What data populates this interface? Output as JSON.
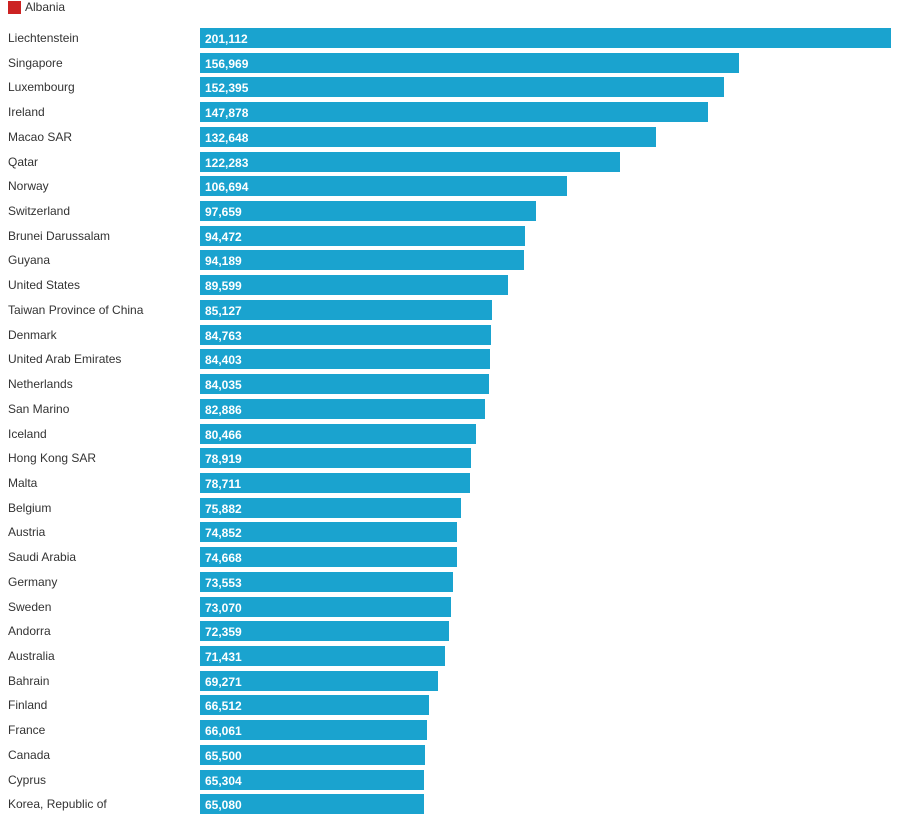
{
  "legend": {
    "label": "Albania",
    "color": "#cc2222"
  },
  "colors": {
    "bar": "#1aa3cf",
    "value_text": "#ffffff",
    "label_text": "#333333"
  },
  "chart_data": {
    "type": "bar",
    "orientation": "horizontal",
    "xlim": [
      0,
      201112
    ],
    "categories": [
      "Liechtenstein",
      "Singapore",
      "Luxembourg",
      "Ireland",
      "Macao SAR",
      "Qatar",
      "Norway",
      "Switzerland",
      "Brunei Darussalam",
      "Guyana",
      "United States",
      "Taiwan Province of China",
      "Denmark",
      "United Arab Emirates",
      "Netherlands",
      "San Marino",
      "Iceland",
      "Hong Kong SAR",
      "Malta",
      "Belgium",
      "Austria",
      "Saudi Arabia",
      "Germany",
      "Sweden",
      "Andorra",
      "Australia",
      "Bahrain",
      "Finland",
      "France",
      "Canada",
      "Cyprus",
      "Korea, Republic of"
    ],
    "values": [
      201112,
      156969,
      152395,
      147878,
      132648,
      122283,
      106694,
      97659,
      94472,
      94189,
      89599,
      85127,
      84763,
      84403,
      84035,
      82886,
      80466,
      78919,
      78711,
      75882,
      74852,
      74668,
      73553,
      73070,
      72359,
      71431,
      69271,
      66512,
      66061,
      65500,
      65304,
      65080
    ],
    "value_labels": [
      "201,112",
      "156,969",
      "152,395",
      "147,878",
      "132,648",
      "122,283",
      "106,694",
      "97,659",
      "94,472",
      "94,189",
      "89,599",
      "85,127",
      "84,763",
      "84,403",
      "84,035",
      "82,886",
      "80,466",
      "78,919",
      "78,711",
      "75,882",
      "74,852",
      "74,668",
      "73,553",
      "73,070",
      "72,359",
      "71,431",
      "69,271",
      "66,512",
      "66,061",
      "65,500",
      "65,304",
      "65,080"
    ]
  }
}
